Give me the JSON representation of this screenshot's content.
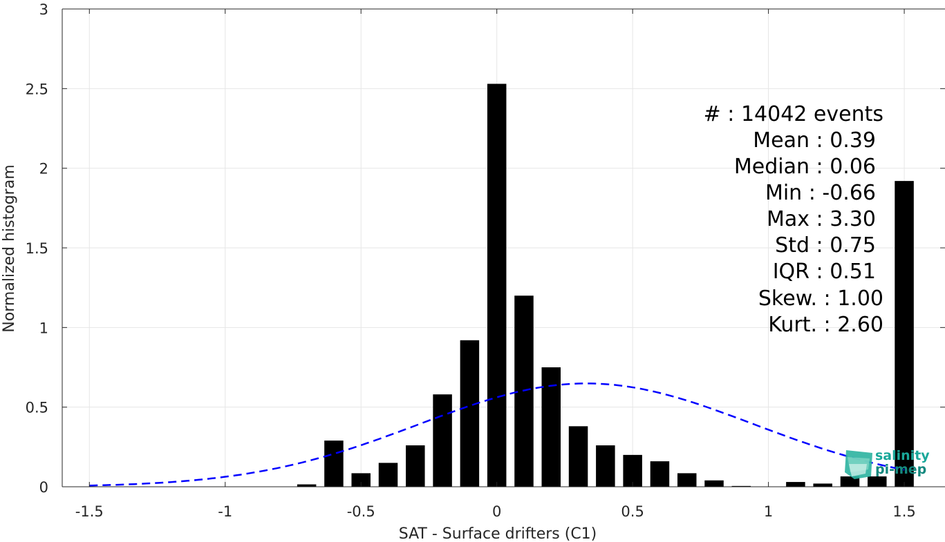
{
  "chart_data": {
    "type": "bar",
    "xlabel": "SAT - Surface drifters (C1)",
    "ylabel": "Normalized histogram",
    "xlim": [
      -1.6,
      1.65
    ],
    "ylim": [
      0,
      3
    ],
    "xticks": [
      -1.5,
      -1,
      -0.5,
      0,
      0.5,
      1,
      1.5
    ],
    "xtick_labels": [
      "-1.5",
      "-1",
      "-0.5",
      "0",
      "0.5",
      "1",
      "1.5"
    ],
    "yticks": [
      0,
      0.5,
      1,
      1.5,
      2,
      2.5,
      3
    ],
    "ytick_labels": [
      "0",
      "0.5",
      "1",
      "1.5",
      "2",
      "2.5",
      "3"
    ],
    "grid": true,
    "bar_width": 0.07,
    "bar_color": "#000000",
    "bars": [
      {
        "x": -0.7,
        "y": 0.015
      },
      {
        "x": -0.6,
        "y": 0.29
      },
      {
        "x": -0.5,
        "y": 0.085
      },
      {
        "x": -0.4,
        "y": 0.15
      },
      {
        "x": -0.3,
        "y": 0.26
      },
      {
        "x": -0.2,
        "y": 0.58
      },
      {
        "x": -0.1,
        "y": 0.92
      },
      {
        "x": 0.0,
        "y": 2.53
      },
      {
        "x": 0.1,
        "y": 1.2
      },
      {
        "x": 0.2,
        "y": 0.75
      },
      {
        "x": 0.3,
        "y": 0.38
      },
      {
        "x": 0.4,
        "y": 0.26
      },
      {
        "x": 0.5,
        "y": 0.2
      },
      {
        "x": 0.6,
        "y": 0.16
      },
      {
        "x": 0.7,
        "y": 0.085
      },
      {
        "x": 0.8,
        "y": 0.04
      },
      {
        "x": 0.9,
        "y": 0.005
      },
      {
        "x": 1.1,
        "y": 0.03
      },
      {
        "x": 1.2,
        "y": 0.02
      },
      {
        "x": 1.3,
        "y": 0.065
      },
      {
        "x": 1.4,
        "y": 0.065
      },
      {
        "x": 1.5,
        "y": 1.92
      }
    ],
    "fit_curve": {
      "kind": "gaussian",
      "mean": 0.33,
      "std": 0.615,
      "x_range": [
        -1.5,
        1.5
      ],
      "color": "#0000ff",
      "style": "dashed"
    },
    "stats": [
      "#  : 14042 events",
      "Mean : 0.39",
      "Median : 0.06",
      "Min : -0.66",
      "Max : 3.30",
      "Std : 0.75",
      "IQR : 0.51",
      "Skew. : 1.00",
      "Kurt. : 2.60"
    ]
  },
  "logo": {
    "line1": "salinity",
    "line2": "pi-mep",
    "icon": "salinity-pimep-logo-icon"
  }
}
